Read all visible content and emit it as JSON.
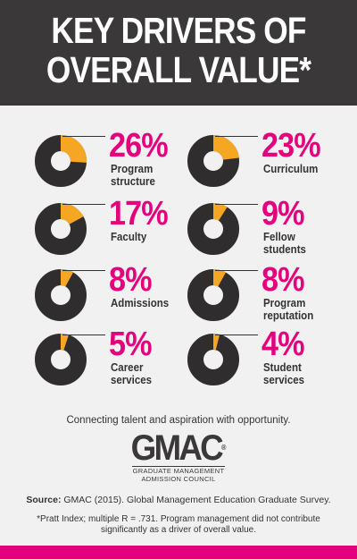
{
  "title": {
    "line1": "KEY DRIVERS OF",
    "line2": "OVERALL VALUE*"
  },
  "colors": {
    "header_bg": "#3a3838",
    "percent": "#e5007e",
    "donut_dark": "#2f2d2e",
    "donut_highlight": "#f5a623",
    "bottom_bar": "#e5007e"
  },
  "chart_data": {
    "type": "pie",
    "title": "KEY DRIVERS OF OVERALL VALUE*",
    "categories": [
      "Program structure",
      "Curriculum",
      "Faculty",
      "Fellow students",
      "Admissions",
      "Program reputation",
      "Career services",
      "Student services"
    ],
    "values": [
      26,
      23,
      17,
      9,
      8,
      8,
      5,
      4
    ],
    "unit": "%",
    "items": [
      {
        "label": "Program\nstructure",
        "value": 26,
        "display": "26%"
      },
      {
        "label": "Curriculum",
        "value": 23,
        "display": "23%"
      },
      {
        "label": "Faculty",
        "value": 17,
        "display": "17%"
      },
      {
        "label": "Fellow\nstudents",
        "value": 9,
        "display": "9%"
      },
      {
        "label": "Admissions",
        "value": 8,
        "display": "8%"
      },
      {
        "label": "Program\nreputation",
        "value": 8,
        "display": "8%"
      },
      {
        "label": "Career\nservices",
        "value": 5,
        "display": "5%"
      },
      {
        "label": "Student\nservices",
        "value": 4,
        "display": "4%"
      }
    ]
  },
  "tagline": "Connecting talent and aspiration with opportunity.",
  "logo": {
    "text": "GMAC",
    "reg": "®",
    "sub_line1": "GRADUATE MANAGEMENT",
    "sub_line2": "ADMISSION COUNCIL"
  },
  "source": {
    "label": "Source:",
    "text": " GMAC (2015). Global Management Education Graduate Survey."
  },
  "note": "*Pratt Index; multiple R = .731. Program management did not contribute significantly as a driver of overall value."
}
